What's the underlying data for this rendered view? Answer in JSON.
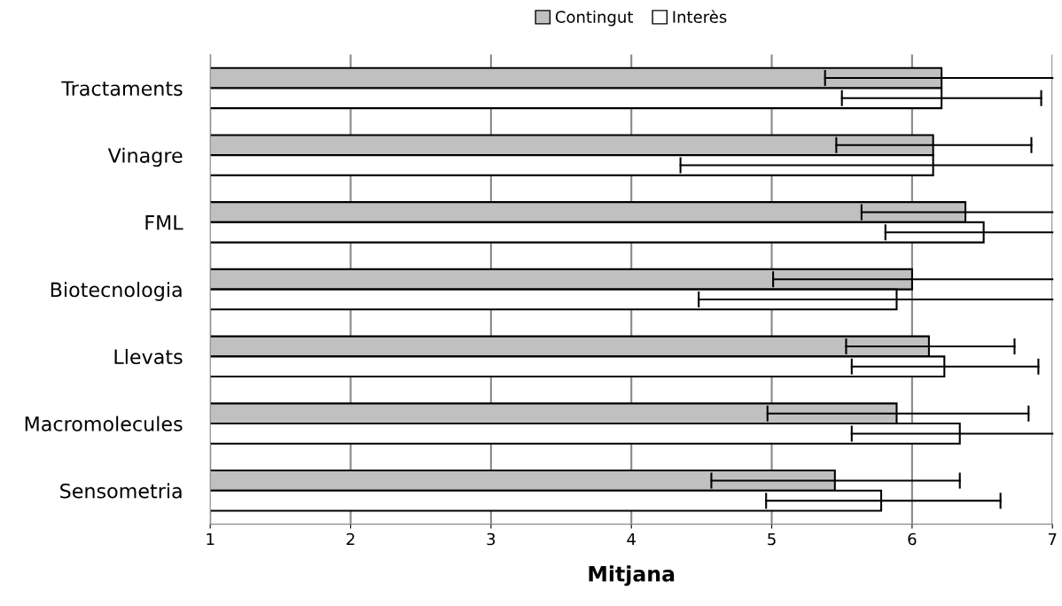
{
  "chart_data": {
    "type": "bar",
    "orientation": "horizontal",
    "xlabel": "Mitjana",
    "categories": [
      "Tractaments",
      "Vinagre",
      "FML",
      "Biotecnologia",
      "Llevats",
      "Macromolecules",
      "Sensometria"
    ],
    "series": [
      {
        "name": "Contingut",
        "color": "#c0c0c0",
        "values": [
          6.21,
          6.15,
          6.38,
          6.0,
          6.12,
          5.89,
          5.45
        ],
        "errors": [
          [
            5.38,
            7
          ],
          [
            5.46,
            6.85
          ],
          [
            5.64,
            7
          ],
          [
            5.01,
            7
          ],
          [
            5.53,
            6.73
          ],
          [
            4.97,
            6.83
          ],
          [
            4.57,
            6.34
          ]
        ]
      },
      {
        "name": "Interès",
        "color": "#ffffff",
        "values": [
          6.21,
          6.15,
          6.51,
          5.89,
          6.23,
          6.34,
          5.78
        ],
        "errors": [
          [
            5.5,
            6.92
          ],
          [
            4.35,
            7
          ],
          [
            5.81,
            7
          ],
          [
            4.48,
            7
          ],
          [
            5.57,
            6.9
          ],
          [
            5.57,
            7
          ],
          [
            4.96,
            6.63
          ]
        ]
      }
    ],
    "xlim": [
      1,
      7
    ],
    "xticks": [
      1,
      2,
      3,
      4,
      5,
      6,
      7
    ],
    "grid": "x",
    "legend": "top"
  }
}
